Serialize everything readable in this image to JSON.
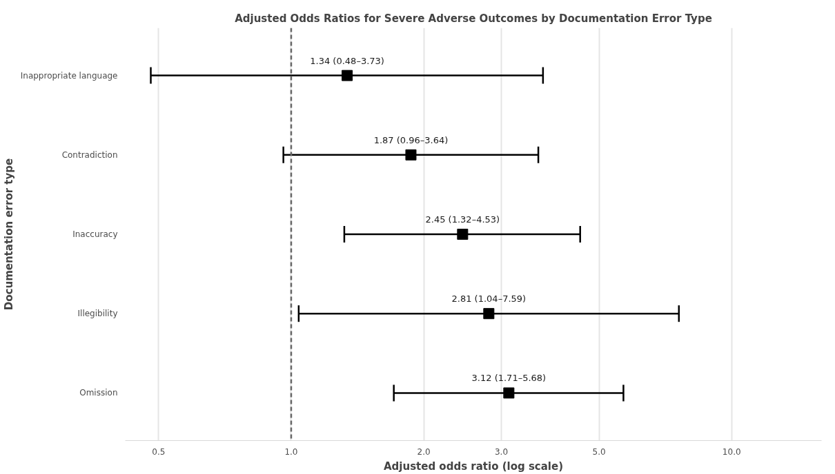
{
  "chart_data": {
    "type": "scatter",
    "orientation": "horizontal",
    "title": "Adjusted Odds Ratios for Severe Adverse Outcomes by Documentation Error Type",
    "xlabel": "Adjusted odds ratio (log scale)",
    "ylabel": "Documentation error type",
    "categories": [
      "Inappropriate language",
      "Contradiction",
      "Inaccuracy",
      "Illegibility",
      "Omission"
    ],
    "values": [
      1.34,
      1.87,
      2.45,
      2.81,
      3.12
    ],
    "errors": [
      [
        0.48,
        3.73
      ],
      [
        0.96,
        3.64
      ],
      [
        1.32,
        4.53
      ],
      [
        1.04,
        7.59
      ],
      [
        1.71,
        5.68
      ]
    ],
    "value_labels": [
      "1.34 (0.48–3.73)",
      "1.87 (0.96–3.64)",
      "2.45 (1.32–4.53)",
      "2.81 (1.04–7.59)",
      "3.12 (1.71–5.68)"
    ],
    "color": "#000000",
    "marker": "square",
    "log": "x",
    "grid": "x",
    "xlim": [
      0.42,
      16
    ],
    "xticks": [
      {
        "value": 0.5,
        "label": "0.5"
      },
      {
        "value": 1,
        "label": "1.0"
      },
      {
        "value": 2,
        "label": "2.0"
      },
      {
        "value": 3,
        "label": "3.0"
      },
      {
        "value": 5,
        "label": "5.0"
      },
      {
        "value": 10,
        "label": "10.0"
      }
    ],
    "ref_lines": [
      {
        "axis": "x",
        "value": 1,
        "label": null,
        "color": "#666666",
        "line_style": "dashed"
      }
    ]
  }
}
